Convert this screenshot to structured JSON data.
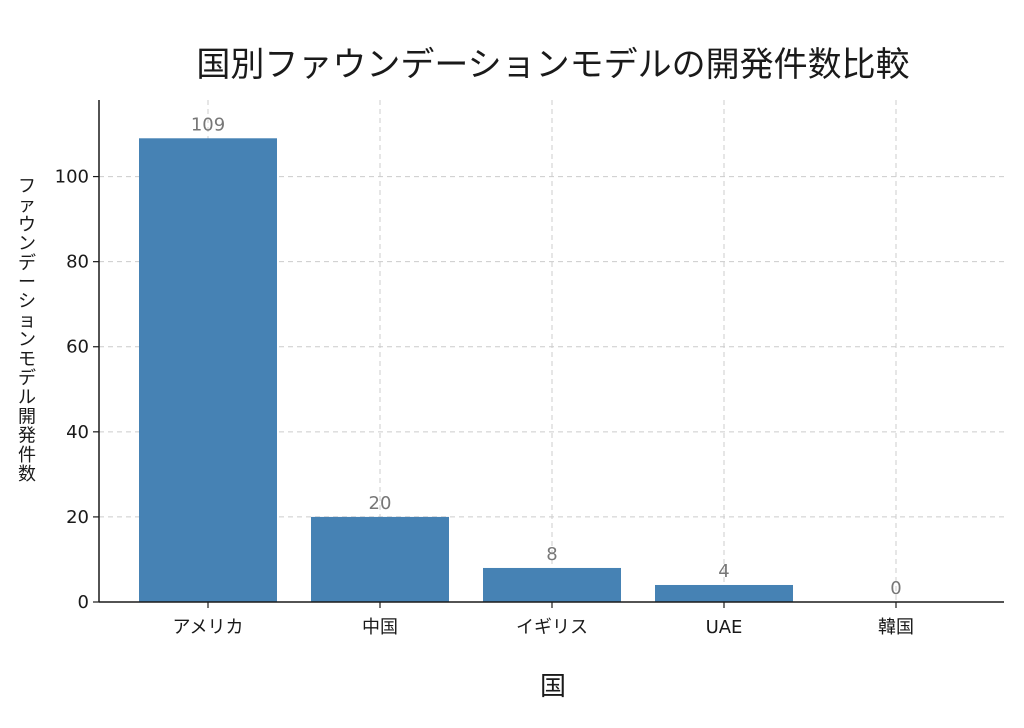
{
  "chart_data": {
    "type": "bar",
    "title": "国別ファウンデーションモデルの開発件数比較",
    "xlabel": "国",
    "ylabel": "ファウンデーションモデル開発件数",
    "categories": [
      "アメリカ",
      "中国",
      "イギリス",
      "UAE",
      "韓国"
    ],
    "values": [
      109,
      20,
      8,
      4,
      0
    ],
    "data_labels": [
      "109",
      "20",
      "8",
      "4",
      "0"
    ],
    "ylim": [
      0,
      118
    ],
    "yticks": [
      0,
      20,
      40,
      60,
      80,
      100
    ],
    "ytick_labels": [
      "0",
      "20",
      "40",
      "60",
      "80",
      "100"
    ],
    "grid": true,
    "bar_color": "#4682b4"
  }
}
